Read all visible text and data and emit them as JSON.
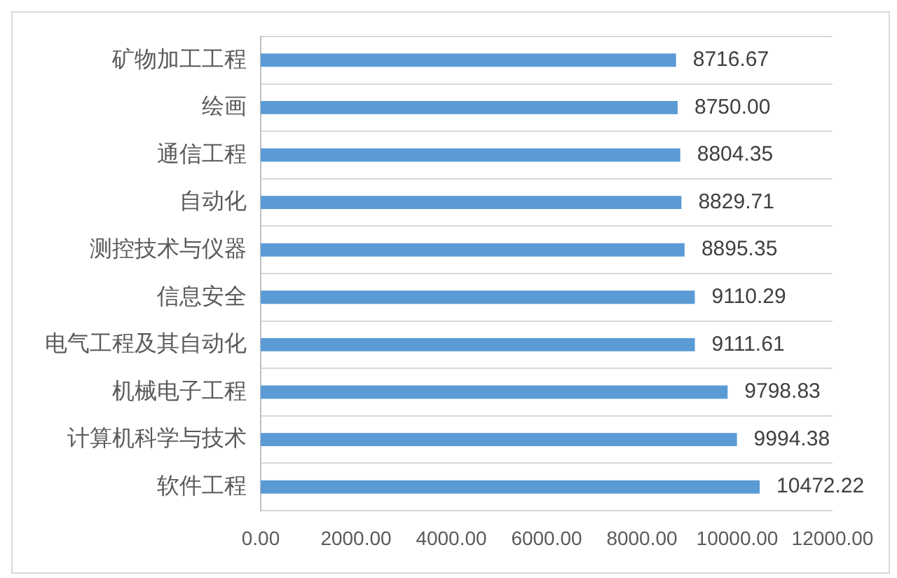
{
  "chart_data": {
    "type": "bar",
    "orientation": "horizontal",
    "categories": [
      "矿物加工工程",
      "绘画",
      "通信工程",
      "自动化",
      "测控技术与仪器",
      "信息安全",
      "电气工程及其自动化",
      "机械电子工程",
      "计算机科学与技术",
      "软件工程"
    ],
    "values": [
      8716.67,
      8750,
      8804.35,
      8829.71,
      8895.35,
      9110.29,
      9111.61,
      9798.83,
      9994.38,
      10472.22
    ],
    "value_labels": [
      "8716.67",
      "8750.00",
      "8804.35",
      "8829.71",
      "8895.35",
      "9110.29",
      "9111.61",
      "9798.83",
      "9994.38",
      "10472.22"
    ],
    "color": "#5b9bd5",
    "xlim": [
      0,
      12000
    ],
    "xticks": [
      {
        "value": 0,
        "label": "0.00"
      },
      {
        "value": 2000,
        "label": "2000.00"
      },
      {
        "value": 4000,
        "label": "4000.00"
      },
      {
        "value": 6000,
        "label": "6000.00"
      },
      {
        "value": 8000,
        "label": "8000.00"
      },
      {
        "value": 10000,
        "label": "10000.00"
      },
      {
        "value": 12000,
        "label": "12000.00"
      }
    ],
    "grid": "y"
  }
}
